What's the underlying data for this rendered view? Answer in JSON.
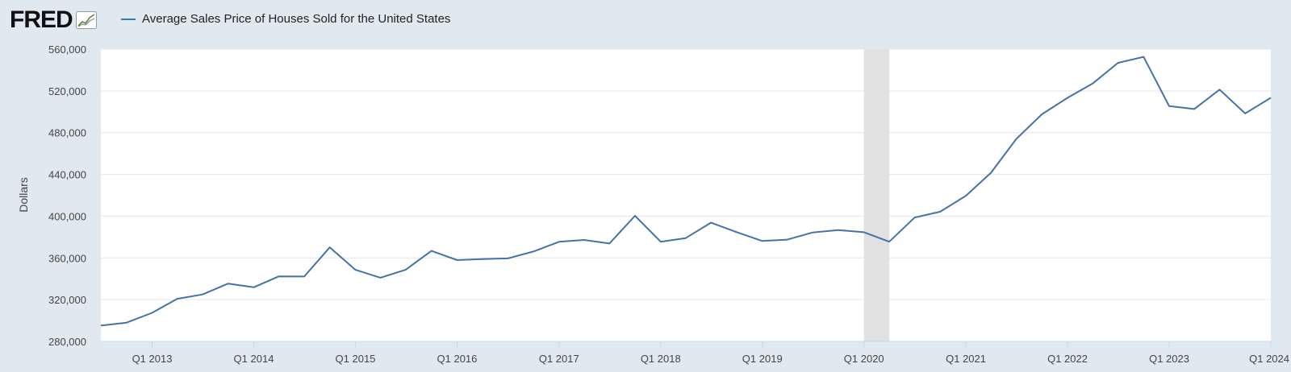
{
  "header": {
    "logo_text": "FRED",
    "logo_icon": "line-chart-icon"
  },
  "legend": {
    "label": "Average Sales Price of Houses Sold for the United States",
    "color": "#4572a7"
  },
  "chart_data": {
    "type": "line",
    "title": "",
    "ylabel": "Dollars",
    "xlabel": "",
    "ylim": [
      280000,
      560000
    ],
    "yticks": [
      280000,
      320000,
      360000,
      400000,
      440000,
      480000,
      520000,
      560000
    ],
    "ytick_labels": [
      "280,000",
      "320,000",
      "360,000",
      "400,000",
      "440,000",
      "480,000",
      "520,000",
      "560,000"
    ],
    "xlim": [
      "2012-07-01",
      "2024-01-01"
    ],
    "xticks": [
      "2013-01-01",
      "2014-01-01",
      "2015-01-01",
      "2016-01-01",
      "2017-01-01",
      "2018-01-01",
      "2019-01-01",
      "2020-01-01",
      "2021-01-01",
      "2022-01-01",
      "2023-01-01",
      "2024-01-01"
    ],
    "xtick_labels": [
      "Q1 2013",
      "Q1 2014",
      "Q1 2015",
      "Q1 2016",
      "Q1 2017",
      "Q1 2018",
      "Q1 2019",
      "Q1 2020",
      "Q1 2021",
      "Q1 2022",
      "Q1 2023",
      "Q1 2024"
    ],
    "recession": {
      "start": "2020-01-01",
      "end": "2020-04-01",
      "color": "#e1e1e1"
    },
    "grid": true,
    "series": [
      {
        "name": "Average Sales Price of Houses Sold for the United States",
        "color": "#4572a7",
        "x": [
          "2012-07-01",
          "2012-10-01",
          "2013-01-01",
          "2013-04-01",
          "2013-07-01",
          "2013-10-01",
          "2014-01-01",
          "2014-04-01",
          "2014-07-01",
          "2014-10-01",
          "2015-01-01",
          "2015-04-01",
          "2015-07-01",
          "2015-10-01",
          "2016-01-01",
          "2016-04-01",
          "2016-07-01",
          "2016-10-01",
          "2017-01-01",
          "2017-04-01",
          "2017-07-01",
          "2017-10-01",
          "2018-01-01",
          "2018-04-01",
          "2018-07-01",
          "2018-10-01",
          "2019-01-01",
          "2019-04-01",
          "2019-07-01",
          "2019-10-01",
          "2020-01-01",
          "2020-04-01",
          "2020-07-01",
          "2020-10-01",
          "2021-01-01",
          "2021-04-01",
          "2021-07-01",
          "2021-10-01",
          "2022-01-01",
          "2022-04-01",
          "2022-07-01",
          "2022-10-01",
          "2023-01-01",
          "2023-04-01",
          "2023-07-01",
          "2023-10-01",
          "2024-01-01"
        ],
        "values": [
          295200,
          298000,
          307400,
          320800,
          325000,
          335400,
          331800,
          342300,
          342200,
          370100,
          348600,
          341000,
          348700,
          366700,
          357900,
          358800,
          359500,
          366100,
          375400,
          377200,
          373800,
          400300,
          375500,
          379000,
          393800,
          384700,
          376200,
          377500,
          384400,
          386600,
          384600,
          375500,
          398600,
          404300,
          419500,
          441500,
          473900,
          497600,
          513300,
          527000,
          546800,
          552600,
          505400,
          502600,
          521200,
          498400,
          513400
        ]
      }
    ]
  }
}
